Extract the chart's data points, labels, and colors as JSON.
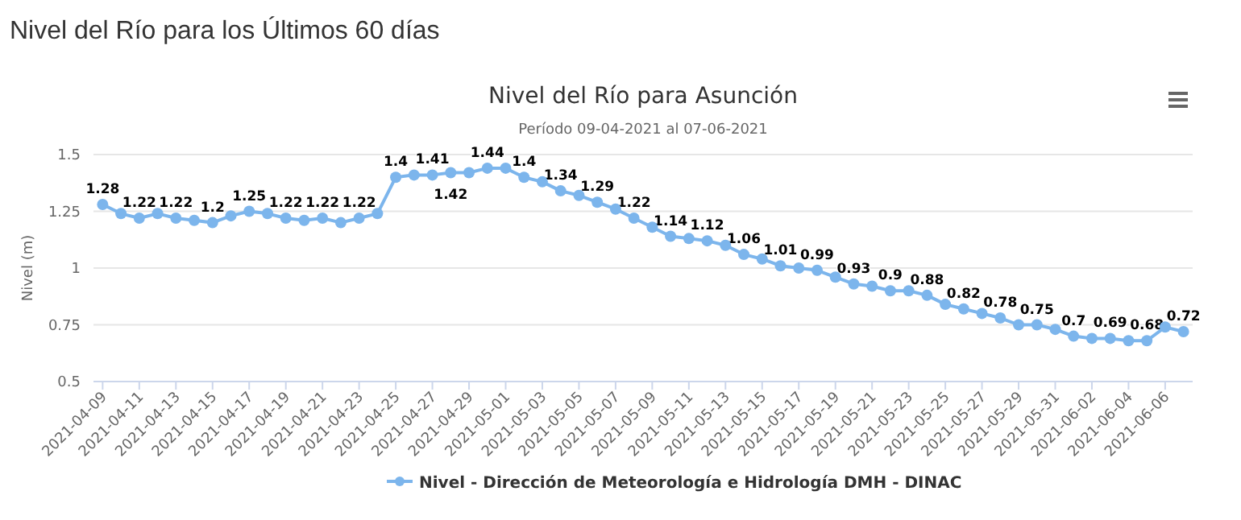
{
  "chart_data": {
    "type": "line",
    "title": "Nivel del Río para Asunción",
    "subtitle": "Período 09-04-2021 al 07-06-2021",
    "annotations": [
      "Nivel del Río para los Últimos 60 días"
    ],
    "ylabel": "Nivel (m)",
    "x": [
      "2021-04-09",
      "2021-04-10",
      "2021-04-11",
      "2021-04-12",
      "2021-04-13",
      "2021-04-14",
      "2021-04-15",
      "2021-04-16",
      "2021-04-17",
      "2021-04-18",
      "2021-04-19",
      "2021-04-20",
      "2021-04-21",
      "2021-04-22",
      "2021-04-23",
      "2021-04-24",
      "2021-04-25",
      "2021-04-26",
      "2021-04-27",
      "2021-04-28",
      "2021-04-29",
      "2021-04-30",
      "2021-05-01",
      "2021-05-02",
      "2021-05-03",
      "2021-05-04",
      "2021-05-05",
      "2021-05-06",
      "2021-05-07",
      "2021-05-08",
      "2021-05-09",
      "2021-05-10",
      "2021-05-11",
      "2021-05-12",
      "2021-05-13",
      "2021-05-14",
      "2021-05-15",
      "2021-05-16",
      "2021-05-17",
      "2021-05-18",
      "2021-05-19",
      "2021-05-20",
      "2021-05-21",
      "2021-05-22",
      "2021-05-23",
      "2021-05-24",
      "2021-05-25",
      "2021-05-26",
      "2021-05-27",
      "2021-05-28",
      "2021-05-29",
      "2021-05-30",
      "2021-05-31",
      "2021-06-01",
      "2021-06-02",
      "2021-06-03",
      "2021-06-04",
      "2021-06-05",
      "2021-06-06",
      "2021-06-07"
    ],
    "series": [
      {
        "name": "Nivel - Dirección de Meteorología e Hidrología DMH - DINAC",
        "color": "#7cb5ec",
        "values": [
          1.28,
          1.24,
          1.22,
          1.24,
          1.22,
          1.21,
          1.2,
          1.23,
          1.25,
          1.24,
          1.22,
          1.21,
          1.22,
          1.2,
          1.22,
          1.24,
          1.4,
          1.41,
          1.41,
          1.42,
          1.42,
          1.44,
          1.44,
          1.4,
          1.38,
          1.34,
          1.32,
          1.29,
          1.26,
          1.22,
          1.18,
          1.14,
          1.13,
          1.12,
          1.1,
          1.06,
          1.04,
          1.01,
          1.0,
          0.99,
          0.96,
          0.93,
          0.92,
          0.9,
          0.9,
          0.88,
          0.84,
          0.82,
          0.8,
          0.78,
          0.75,
          0.75,
          0.73,
          0.7,
          0.69,
          0.69,
          0.68,
          0.68,
          0.74,
          0.72
        ],
        "value_labels": [
          "1.28",
          null,
          "1.22",
          null,
          "1.22",
          null,
          "1.2",
          null,
          "1.25",
          null,
          "1.22",
          null,
          "1.22",
          null,
          "1.22",
          null,
          "1.4",
          null,
          "1.41",
          "1.42",
          null,
          "1.44",
          null,
          "1.4",
          null,
          "1.34",
          null,
          "1.29",
          null,
          "1.22",
          null,
          "1.14",
          null,
          "1.12",
          null,
          "1.06",
          null,
          "1.01",
          null,
          "0.99",
          null,
          "0.93",
          null,
          "0.9",
          null,
          "0.88",
          null,
          "0.82",
          null,
          "0.78",
          null,
          "0.75",
          null,
          "0.7",
          null,
          "0.69",
          null,
          "0.68",
          null,
          "0.72"
        ]
      }
    ],
    "xlim": [
      "2021-04-08T12:00",
      "2021-06-07T12:00"
    ],
    "xticks": [
      "2021-04-09",
      "2021-04-11",
      "2021-04-13",
      "2021-04-15",
      "2021-04-17",
      "2021-04-19",
      "2021-04-21",
      "2021-04-23",
      "2021-04-25",
      "2021-04-27",
      "2021-04-29",
      "2021-05-01",
      "2021-05-03",
      "2021-05-05",
      "2021-05-07",
      "2021-05-09",
      "2021-05-11",
      "2021-05-13",
      "2021-05-15",
      "2021-05-17",
      "2021-05-19",
      "2021-05-21",
      "2021-05-23",
      "2021-05-25",
      "2021-05-27",
      "2021-05-29",
      "2021-05-31",
      "2021-06-02",
      "2021-06-04",
      "2021-06-06"
    ],
    "ylim": [
      0.5,
      1.5
    ],
    "yticks": [
      0.5,
      0.75,
      1,
      1.25,
      1.5
    ],
    "grid": "y",
    "legend": "bottom",
    "marker": "circle",
    "line_style": "solid"
  }
}
